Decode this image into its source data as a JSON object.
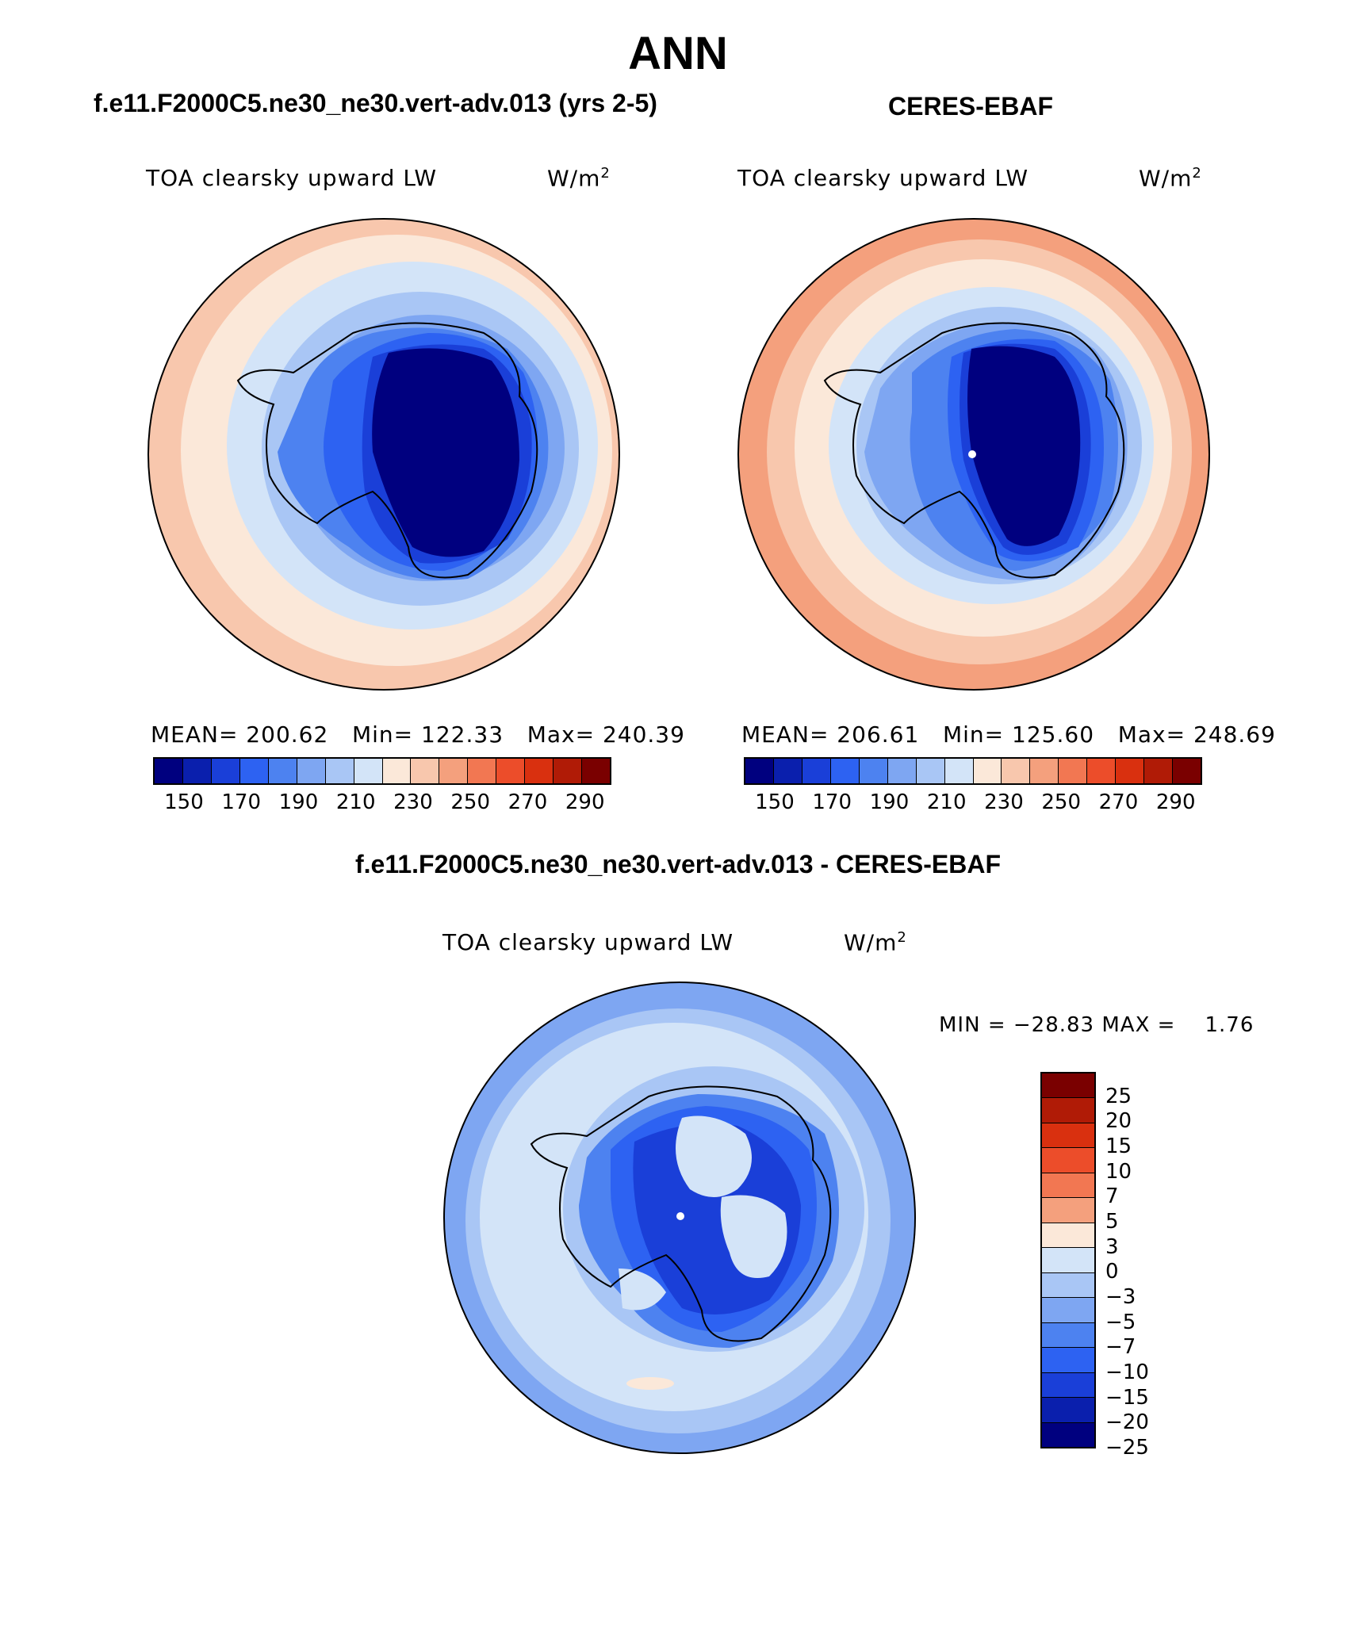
{
  "main_title": "ANN",
  "left_panel": {
    "header": "f.e11.F2000C5.ne30_ne30.vert-adv.013 (yrs 2-5)",
    "variable": "TOA clearsky upward LW",
    "units_base": "W/m",
    "units_exp": "2",
    "stats": "MEAN= 200.62   Min= 122.33   Max= 240.39"
  },
  "right_panel": {
    "header": "CERES-EBAF",
    "variable": "TOA clearsky upward LW",
    "units_base": "W/m",
    "units_exp": "2",
    "stats": "MEAN= 206.61   Min= 125.60   Max= 248.69"
  },
  "diff_panel": {
    "header": "f.e11.F2000C5.ne30_ne30.vert-adv.013 - CERES-EBAF",
    "variable": "TOA clearsky upward LW",
    "units_base": "W/m",
    "units_exp": "2",
    "minmax": "MIN = −28.83 MAX =    1.76"
  },
  "abs_colorbar": {
    "colors": [
      "#00007f",
      "#0a1fad",
      "#1a3fd8",
      "#2d62f2",
      "#4d82f0",
      "#7ea6f2",
      "#a9c6f5",
      "#d3e4f8",
      "#fbe8d9",
      "#f8c7ad",
      "#f4a07d",
      "#f27752",
      "#ec4d2a",
      "#d9300f",
      "#b01b06",
      "#7a0000"
    ],
    "labels": [
      "150",
      "170",
      "190",
      "210",
      "230",
      "250",
      "270",
      "290"
    ]
  },
  "diff_colorbar": {
    "colors": [
      "#7a0000",
      "#b01b06",
      "#d9300f",
      "#ec4d2a",
      "#f27752",
      "#f4a07d",
      "#fbe8d9",
      "#d3e4f8",
      "#a9c6f5",
      "#7ea6f2",
      "#4d82f0",
      "#2d62f2",
      "#1a3fd8",
      "#0a1fad",
      "#00007f"
    ],
    "labels": [
      "25",
      "20",
      "15",
      "10",
      "7",
      "5",
      "3",
      "0",
      "−3",
      "−5",
      "−7",
      "−10",
      "−15",
      "−20",
      "−25"
    ]
  }
}
